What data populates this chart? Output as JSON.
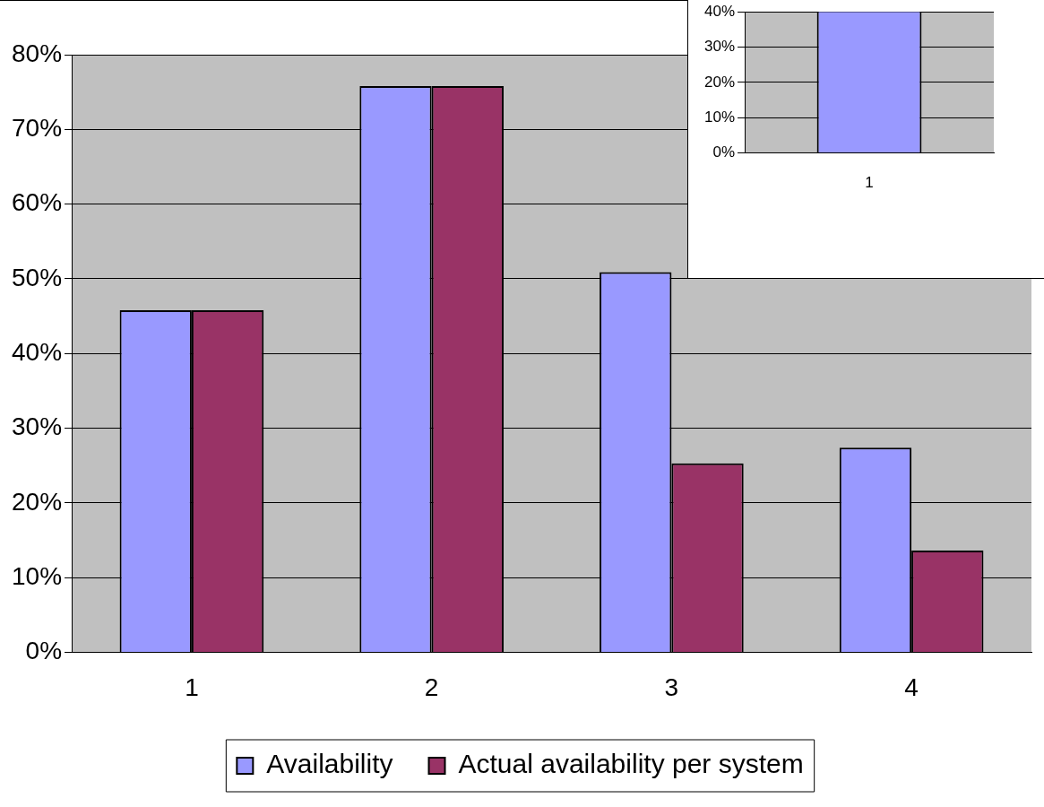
{
  "chart_data": [
    {
      "type": "bar",
      "categories": [
        "1",
        "2",
        "3",
        "4"
      ],
      "series": [
        {
          "name": "Availability",
          "color": "#9999ff",
          "values": [
            45.8,
            75.8,
            50.9,
            27.4
          ]
        },
        {
          "name": "Actual availability per system",
          "color": "#993366",
          "values": [
            45.8,
            75.8,
            25.3,
            13.6
          ]
        }
      ],
      "ylim": [
        0,
        80
      ],
      "yticks": [
        {
          "value": 0,
          "label": "0%"
        },
        {
          "value": 10,
          "label": "10%"
        },
        {
          "value": 20,
          "label": "20%"
        },
        {
          "value": 30,
          "label": "30%"
        },
        {
          "value": 40,
          "label": "40%"
        },
        {
          "value": 50,
          "label": "50%"
        },
        {
          "value": 60,
          "label": "60%"
        },
        {
          "value": 70,
          "label": "70%"
        },
        {
          "value": 80,
          "label": "80%"
        }
      ],
      "grid": "y",
      "legend": "bottom"
    },
    {
      "type": "bar",
      "categories": [
        "1"
      ],
      "series": [
        {
          "color": "#9999ff",
          "values": [
            40
          ]
        }
      ],
      "ylim": [
        0,
        40
      ],
      "yticks": [
        {
          "value": 0,
          "label": "0%"
        },
        {
          "value": 10,
          "label": "10%"
        },
        {
          "value": 20,
          "label": "20%"
        },
        {
          "value": 30,
          "label": "30%"
        },
        {
          "value": 40,
          "label": "40%"
        }
      ],
      "grid": "y"
    }
  ]
}
